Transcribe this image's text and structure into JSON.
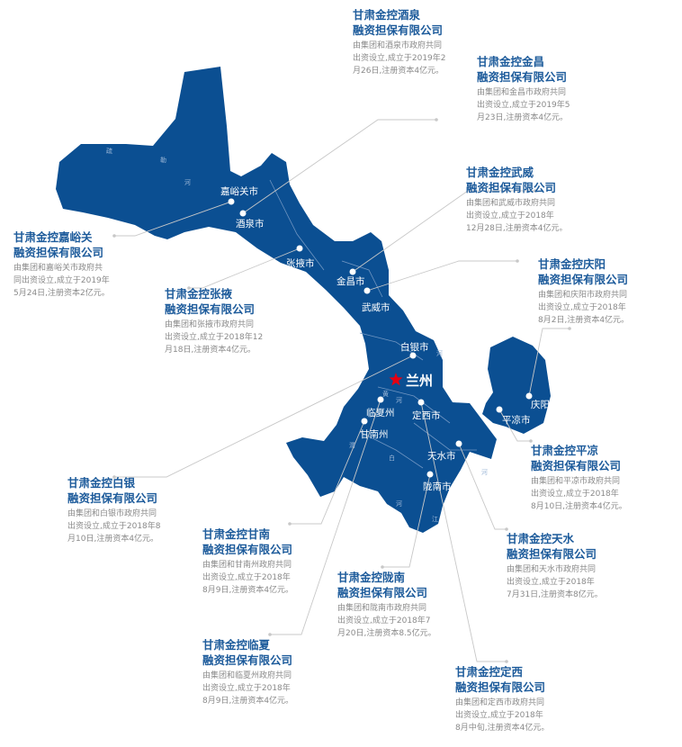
{
  "colors": {
    "map_fill": "#0b4f92",
    "title": "#1d5b9b",
    "body": "#8a8a8a",
    "capital_star": "#e60012",
    "leader_line": "#c8c8c8"
  },
  "capital": {
    "name": "兰州",
    "icon": "star-icon"
  },
  "rivers": [
    "疏",
    "勒",
    "河",
    "河",
    "黄",
    "河",
    "渭",
    "白",
    "河",
    "河",
    "江"
  ],
  "cities": [
    "嘉峪关市",
    "酒泉市",
    "张掖市",
    "金昌市",
    "武威市",
    "白银市",
    "临夏州",
    "定西市",
    "甘南州",
    "天水市",
    "陇南市",
    "平凉市",
    "庆阳市"
  ],
  "companies": [
    {
      "title1": "甘肃金控酒泉",
      "title2": "融资担保有限公司",
      "lines": [
        "由集团和酒泉市政府共同",
        "出资设立,成立于2019年2",
        "月26日,注册资本4亿元。"
      ]
    },
    {
      "title1": "甘肃金控金昌",
      "title2": "融资担保有限公司",
      "lines": [
        "由集团和金昌市政府共同",
        "出资设立,成立于2019年5",
        "月23日,注册资本4亿元。"
      ]
    },
    {
      "title1": "甘肃金控武威",
      "title2": "融资担保有限公司",
      "lines": [
        "由集团和武威市政府共同",
        "出资设立,成立于2018年",
        "12月28日,注册资本4亿元。"
      ]
    },
    {
      "title1": "甘肃金控嘉峪关",
      "title2": "融资担保有限公司",
      "lines": [
        "由集团和嘉峪关市政府共",
        "同出资设立,成立于2019年",
        "5月24日,注册资本2亿元。"
      ]
    },
    {
      "title1": "甘肃金控张掖",
      "title2": "融资担保有限公司",
      "lines": [
        "由集团和张掖市政府共同",
        "出资设立,成立于2018年12",
        "月18日,注册资本4亿元。"
      ]
    },
    {
      "title1": "甘肃金控庆阳",
      "title2": "融资担保有限公司",
      "lines": [
        "由集团和庆阳市政府共同",
        "出资设立,成立于2018年",
        "8月2日,注册资本4亿元。"
      ]
    },
    {
      "title1": "甘肃金控平凉",
      "title2": "融资担保有限公司",
      "lines": [
        "由集团和平凉市政府共同",
        "出资设立,成立于2018年",
        "8月10日,注册资本4亿元。"
      ]
    },
    {
      "title1": "甘肃金控白银",
      "title2": "融资担保有限公司",
      "lines": [
        "由集团和白银市政府共同",
        "出资设立,成立于2018年8",
        "月10日,注册资本4亿元。"
      ]
    },
    {
      "title1": "甘肃金控甘南",
      "title2": "融资担保有限公司",
      "lines": [
        "由集团和甘南州政府共同",
        "出资设立,成立于2018年",
        "8月9日,注册资本4亿元。"
      ]
    },
    {
      "title1": "甘肃金控陇南",
      "title2": "融资担保有限公司",
      "lines": [
        "由集团和陇南市政府共同",
        "出资设立,成立于2018年7",
        "月20日,注册资本8.5亿元。"
      ]
    },
    {
      "title1": "甘肃金控天水",
      "title2": "融资担保有限公司",
      "lines": [
        "由集团和天水市政府共同",
        "出资设立,成立于2018年",
        "7月31日,注册资本8亿元。"
      ]
    },
    {
      "title1": "甘肃金控临夏",
      "title2": "融资担保有限公司",
      "lines": [
        "由集团和临夏州政府共同",
        "出资设立,成立于2018年",
        "8月9日,注册资本4亿元。"
      ]
    },
    {
      "title1": "甘肃金控定西",
      "title2": "融资担保有限公司",
      "lines": [
        "由集团和定西市政府共同",
        "出资设立,成立于2018年",
        "8月中旬,注册资本4亿元。"
      ]
    }
  ]
}
